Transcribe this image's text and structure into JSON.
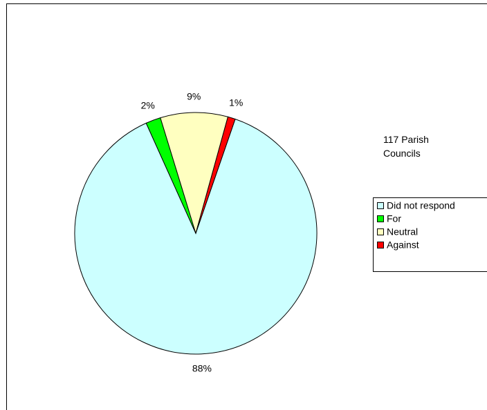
{
  "chart_data": {
    "type": "pie",
    "title": "117 Parish Councils",
    "categories": [
      "Did not respond",
      "For",
      "Neutral",
      "Against"
    ],
    "values": [
      88,
      2,
      9,
      1
    ],
    "value_labels": [
      "88%",
      "2%",
      "9%",
      "1%"
    ],
    "colors": [
      "#ccffff",
      "#00ff00",
      "#ffffc0",
      "#ff0000"
    ],
    "legend": "right"
  }
}
